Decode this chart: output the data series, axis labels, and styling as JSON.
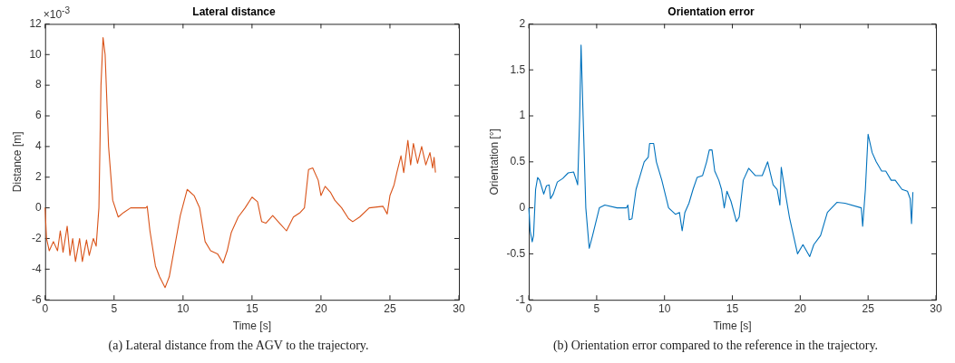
{
  "chart_data": [
    {
      "type": "line",
      "title": "Lateral distance",
      "xlabel": "Time [s]",
      "ylabel": "Distance [m]",
      "annotations": [
        "×10$^{-3}$",
        "(a) Lateral distance from the AGV to the trajectory."
      ],
      "xlim": [
        0,
        30
      ],
      "xticks": [
        0,
        5,
        10,
        15,
        20,
        25,
        30
      ],
      "ylim": [
        -6,
        12
      ],
      "yticks": [
        -6,
        -4,
        -2,
        0,
        2,
        4,
        6,
        8,
        10,
        12
      ],
      "marker": "none",
      "series": [
        {
          "color": "#d95319",
          "x": [
            0,
            0.1,
            0.3,
            0.6,
            0.9,
            1.1,
            1.3,
            1.6,
            1.8,
            2.0,
            2.2,
            2.5,
            2.7,
            3.0,
            3.2,
            3.5,
            3.7,
            3.9,
            4.05,
            4.2,
            4.35,
            4.6,
            4.9,
            5.3,
            5.7,
            6.2,
            7.3,
            7.4,
            7.6,
            8.0,
            8.3,
            8.7,
            9.0,
            9.4,
            9.8,
            10.3,
            10.8,
            11.2,
            11.6,
            12.0,
            12.5,
            12.9,
            13.2,
            13.5,
            14.0,
            14.5,
            15.0,
            15.4,
            15.7,
            16.0,
            16.5,
            17.0,
            17.5,
            18.0,
            18.5,
            18.8,
            19.1,
            19.4,
            19.8,
            20.0,
            20.3,
            20.7,
            21.0,
            21.5,
            22.0,
            22.3,
            22.8,
            23.5,
            24.5,
            24.8,
            25.0,
            25.3,
            25.5,
            25.8,
            26.0,
            26.3,
            26.5,
            26.7,
            27.0,
            27.3,
            27.6,
            27.9,
            28.1,
            28.2,
            28.3
          ],
          "values": [
            0,
            -2,
            -2.8,
            -2.2,
            -2.8,
            -1.5,
            -2.9,
            -1.2,
            -3.1,
            -2.0,
            -3.5,
            -2.0,
            -3.5,
            -2.1,
            -3.1,
            -2.0,
            -2.5,
            0,
            8,
            11.1,
            10,
            4,
            0.5,
            -0.6,
            -0.3,
            0,
            0,
            0.1,
            -1.5,
            -3.8,
            -4.5,
            -5.2,
            -4.5,
            -2.5,
            -0.5,
            1.2,
            0.8,
            0,
            -2.2,
            -2.8,
            -3.0,
            -3.6,
            -2.8,
            -1.6,
            -0.6,
            0,
            0.7,
            0.4,
            -0.9,
            -1.0,
            -0.5,
            -1.0,
            -1.5,
            -0.6,
            -0.3,
            0,
            2.5,
            2.6,
            1.8,
            0.8,
            1.4,
            1.0,
            0.5,
            0,
            -0.7,
            -0.9,
            -0.6,
            0,
            0.1,
            -0.4,
            0.8,
            1.5,
            2.3,
            3.4,
            2.3,
            4.4,
            2.8,
            4.2,
            2.9,
            4.0,
            2.8,
            3.6,
            2.6,
            3.3,
            2.3
          ]
        }
      ]
    },
    {
      "type": "line",
      "title": "Orientation error",
      "xlabel": "Time [s]",
      "ylabel": "Orientation [°]",
      "annotations": [
        "(b) Orientation error compared to the reference in the trajectory."
      ],
      "xlim": [
        0,
        30
      ],
      "xticks": [
        0,
        5,
        10,
        15,
        20,
        25,
        30
      ],
      "ylim": [
        -1,
        2
      ],
      "yticks": [
        -1,
        -0.5,
        0,
        0.5,
        1,
        1.5,
        2
      ],
      "marker": "none",
      "series": [
        {
          "color": "#0072bd",
          "x": [
            0,
            0.1,
            0.25,
            0.35,
            0.5,
            0.65,
            0.8,
            1.0,
            1.1,
            1.3,
            1.5,
            1.6,
            1.8,
            2.1,
            2.5,
            2.9,
            3.3,
            3.5,
            3.6,
            3.75,
            3.85,
            4.0,
            4.2,
            4.45,
            4.7,
            5.2,
            5.6,
            6.5,
            7.2,
            7.3,
            7.4,
            7.6,
            7.9,
            8.2,
            8.5,
            8.8,
            8.9,
            9.2,
            9.4,
            9.8,
            10.3,
            10.8,
            11.1,
            11.3,
            11.5,
            11.8,
            12.1,
            12.4,
            12.8,
            13.1,
            13.3,
            13.5,
            13.7,
            14.0,
            14.2,
            14.4,
            14.6,
            14.9,
            15.3,
            15.5,
            15.8,
            16.2,
            16.7,
            17.2,
            17.6,
            18.0,
            18.3,
            18.5,
            18.6,
            18.8,
            19.2,
            19.5,
            19.8,
            20.2,
            20.7,
            21.0,
            21.5,
            22.0,
            22.7,
            23.3,
            24.5,
            24.6,
            24.8,
            25.0,
            25.3,
            25.6,
            26.0,
            26.3,
            26.7,
            27.0,
            27.5,
            27.9,
            28.1,
            28.2,
            28.3
          ],
          "values": [
            0,
            -0.25,
            -0.37,
            -0.3,
            0.2,
            0.33,
            0.3,
            0.2,
            0.15,
            0.24,
            0.25,
            0.1,
            0.15,
            0.28,
            0.32,
            0.38,
            0.39,
            0.3,
            0.25,
            1.0,
            1.77,
            1.0,
            0.0,
            -0.44,
            -0.3,
            0.0,
            0.03,
            0.0,
            0.0,
            0.03,
            -0.13,
            -0.12,
            0.2,
            0.35,
            0.5,
            0.55,
            0.7,
            0.7,
            0.5,
            0.3,
            0.0,
            -0.07,
            -0.05,
            -0.25,
            -0.05,
            0.05,
            0.2,
            0.33,
            0.35,
            0.5,
            0.63,
            0.63,
            0.4,
            0.3,
            0.2,
            0.0,
            0.18,
            0.07,
            -0.15,
            -0.1,
            0.3,
            0.43,
            0.35,
            0.35,
            0.5,
            0.25,
            0.2,
            0.03,
            0.44,
            0.25,
            -0.1,
            -0.3,
            -0.5,
            -0.4,
            -0.53,
            -0.4,
            -0.3,
            -0.05,
            0.06,
            0.05,
            0.0,
            -0.2,
            0.2,
            0.8,
            0.6,
            0.5,
            0.4,
            0.4,
            0.3,
            0.3,
            0.2,
            0.18,
            0.1,
            -0.17,
            0.17
          ]
        }
      ]
    }
  ]
}
